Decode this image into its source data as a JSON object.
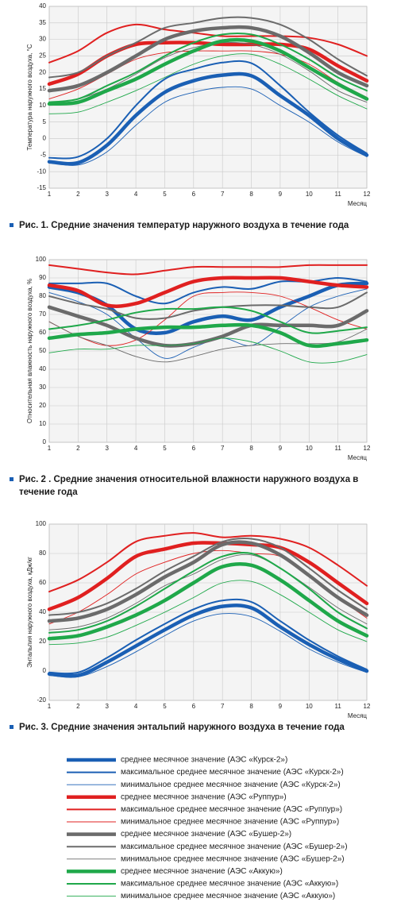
{
  "chart_data": [
    {
      "type": "line",
      "caption": "Рис. 1. Средние значения температур наружного воздуха в течение года",
      "ylabel": "Температура наружного воздуха, °С",
      "xlabel": "Месяц",
      "x": [
        1,
        2,
        3,
        4,
        5,
        6,
        7,
        8,
        9,
        10,
        11,
        12
      ],
      "xlim": [
        1,
        12
      ],
      "ylim": [
        -15,
        40
      ],
      "yticks": [
        -15,
        -10,
        -5,
        0,
        5,
        10,
        15,
        20,
        25,
        30,
        35,
        40
      ],
      "grid": true,
      "series": [
        {
          "name": "среднее месячное значение (АЭС «Курск-2»)",
          "color": "#1a5fb4",
          "values": [
            -7,
            -7.3,
            -2,
            7,
            14,
            17.5,
            19.2,
            19,
            13,
            7,
            0,
            -5
          ]
        },
        {
          "name": "максимальное среднее месячное значение (АЭС «Курск-2»)",
          "color": "#1a5fb4",
          "values": [
            -5.8,
            -5.5,
            0,
            10,
            18,
            21,
            23,
            22.8,
            16,
            8,
            1,
            -4.5
          ]
        },
        {
          "name": "минимальное среднее месячное значение (АЭС «Курск-2»)",
          "color": "#1a5fb4",
          "values": [
            -7.2,
            -8,
            -4,
            4,
            11,
            14,
            15.5,
            15,
            10,
            5,
            -1,
            -5.5
          ]
        },
        {
          "name": "среднее месячное значение (АЭС «Руппур»)",
          "color": "#e02020",
          "values": [
            16.5,
            19.5,
            25,
            28.5,
            29,
            29,
            28.5,
            28.5,
            28.5,
            27,
            22,
            17.5
          ]
        },
        {
          "name": "максимальное среднее месячное значение (АЭС «Руппур»)",
          "color": "#e02020",
          "values": [
            23,
            26.5,
            32,
            34.5,
            33,
            32,
            31,
            31,
            31,
            30.5,
            28.5,
            25
          ]
        },
        {
          "name": "минимальное среднее месячное значение (АЭС «Руппур»)",
          "color": "#e02020",
          "values": [
            12,
            15,
            19.5,
            24,
            26,
            26.5,
            26.5,
            26.5,
            25.5,
            22.5,
            17,
            12.5
          ]
        },
        {
          "name": "среднее месячное значение (АЭС «Бушер-2»)",
          "color": "#6b6b6b",
          "values": [
            14.5,
            16,
            20,
            25,
            30,
            32.5,
            33.5,
            33.5,
            31,
            26,
            20,
            16
          ]
        },
        {
          "name": "максимальное среднее месячное значение (АЭС «Бушер-2»)",
          "color": "#6b6b6b",
          "values": [
            18.5,
            20,
            25,
            29,
            33.5,
            35,
            36.5,
            36.5,
            34.5,
            30,
            24,
            19
          ]
        },
        {
          "name": "минимальное среднее месячное значение (АЭС «Бушер-2»)",
          "color": "#6b6b6b",
          "values": [
            10.5,
            12,
            15,
            19.5,
            24.5,
            27.5,
            29,
            28.5,
            25.5,
            20.5,
            14.5,
            11
          ]
        },
        {
          "name": "среднее месячное значение (АЭС «Аккую»)",
          "color": "#1fa84a",
          "values": [
            10.5,
            11,
            14.5,
            18,
            22.5,
            26.5,
            29.5,
            29.5,
            26.5,
            21.5,
            16.5,
            12
          ]
        },
        {
          "name": "максимальное среднее месячное значение (АЭС «Аккую»)",
          "color": "#1fa84a",
          "values": [
            11,
            12,
            16,
            20,
            25,
            29,
            31.5,
            31.5,
            28.5,
            24,
            18.5,
            14.5
          ]
        },
        {
          "name": "минимальное среднее месячное значение (АЭС «Аккую»)",
          "color": "#1fa84a",
          "values": [
            7.5,
            8,
            11,
            14.5,
            18.5,
            22.5,
            25,
            25.5,
            22.5,
            18,
            13,
            9
          ]
        }
      ]
    },
    {
      "type": "line",
      "caption": "Рис. 2 . Средние значения относительной влажности наружного воздуха в течение года",
      "ylabel": "Относительная влажность наружного воздуха, %",
      "xlabel": "Месяц",
      "x": [
        1,
        2,
        3,
        4,
        5,
        6,
        7,
        8,
        9,
        10,
        11,
        12
      ],
      "xlim": [
        1,
        12
      ],
      "ylim": [
        0,
        100
      ],
      "yticks": [
        0,
        10,
        20,
        30,
        40,
        50,
        60,
        70,
        80,
        90,
        100
      ],
      "grid": true,
      "series": [
        {
          "color": "#1a5fb4",
          "values": [
            85,
            82,
            75,
            62,
            60,
            66,
            69,
            67,
            74,
            80,
            86,
            87
          ]
        },
        {
          "color": "#1a5fb4",
          "values": [
            87,
            87,
            87,
            80,
            76,
            82,
            85,
            84,
            88,
            88,
            90,
            88
          ]
        },
        {
          "color": "#1a5fb4",
          "values": [
            82,
            77,
            70,
            57,
            46,
            52,
            57,
            53,
            63,
            74,
            80,
            84
          ]
        },
        {
          "color": "#e02020",
          "values": [
            86,
            83,
            75,
            76,
            82,
            88,
            90,
            90,
            90,
            88,
            86,
            85
          ]
        },
        {
          "color": "#e02020",
          "values": [
            97,
            95,
            93,
            92,
            94,
            96,
            96,
            96,
            96,
            97,
            97,
            97
          ]
        },
        {
          "color": "#e02020",
          "values": [
            66,
            58,
            53,
            56,
            67,
            80,
            82,
            82,
            80,
            74,
            67,
            62
          ]
        },
        {
          "color": "#6b6b6b",
          "values": [
            74,
            69,
            64,
            57,
            53,
            54,
            58,
            64,
            64,
            64,
            64,
            72
          ]
        },
        {
          "color": "#6b6b6b",
          "values": [
            80,
            76,
            73,
            68,
            68,
            72,
            74,
            75,
            75,
            74,
            74,
            82
          ]
        },
        {
          "color": "#6b6b6b",
          "values": [
            66,
            58,
            53,
            47,
            44,
            47,
            51,
            53,
            54,
            54,
            55,
            62
          ]
        },
        {
          "color": "#1fa84a",
          "values": [
            57,
            59,
            60,
            62,
            63,
            63,
            64,
            64,
            60,
            53,
            54,
            56
          ]
        },
        {
          "color": "#1fa84a",
          "values": [
            62,
            64,
            67,
            71,
            73,
            73,
            74,
            72,
            66,
            60,
            61,
            63
          ]
        },
        {
          "color": "#1fa84a",
          "values": [
            49,
            51,
            51,
            53,
            53,
            54,
            57,
            55,
            50,
            44,
            44,
            48
          ]
        }
      ]
    },
    {
      "type": "line",
      "caption": "Рис. 3. Средние значения энтальпий наружного воздуха в течение года",
      "ylabel": "Энтальпия наружного воздуха, кДж/кг",
      "xlabel": "Месяц",
      "x": [
        1,
        2,
        3,
        4,
        5,
        6,
        7,
        8,
        9,
        10,
        11,
        12
      ],
      "xlim": [
        1,
        12
      ],
      "ylim": [
        -20,
        100
      ],
      "yticks": [
        -20,
        0,
        20,
        40,
        60,
        80,
        100
      ],
      "grid": true,
      "series": [
        {
          "color": "#1a5fb4",
          "values": [
            -2,
            -3,
            6,
            17,
            28,
            38,
            44,
            43,
            30,
            18,
            8,
            0
          ]
        },
        {
          "color": "#1a5fb4",
          "values": [
            -1,
            -1,
            9,
            21,
            32,
            42,
            48,
            47,
            34,
            21,
            10,
            1
          ]
        },
        {
          "color": "#1a5fb4",
          "values": [
            -3,
            -4,
            3,
            13,
            24,
            34,
            39,
            37,
            27,
            15,
            6,
            -1
          ]
        },
        {
          "color": "#e02020",
          "values": [
            42,
            50,
            63,
            78,
            83,
            87,
            87,
            86,
            84,
            74,
            60,
            46
          ]
        },
        {
          "color": "#e02020",
          "values": [
            54,
            62,
            74,
            88,
            92,
            94,
            91,
            92,
            90,
            84,
            72,
            58
          ]
        },
        {
          "color": "#e02020",
          "values": [
            32,
            40,
            52,
            66,
            74,
            80,
            82,
            80,
            78,
            66,
            50,
            36
          ]
        },
        {
          "color": "#6b6b6b",
          "values": [
            34,
            36,
            42,
            52,
            64,
            74,
            86,
            87,
            79,
            65,
            50,
            38
          ]
        },
        {
          "color": "#6b6b6b",
          "values": [
            38,
            40,
            46,
            56,
            68,
            78,
            88,
            90,
            84,
            70,
            55,
            42
          ]
        },
        {
          "color": "#6b6b6b",
          "values": [
            28,
            30,
            36,
            46,
            58,
            66,
            76,
            79,
            70,
            57,
            43,
            32
          ]
        },
        {
          "color": "#1fa84a",
          "values": [
            22,
            24,
            30,
            38,
            48,
            60,
            71,
            72,
            62,
            48,
            34,
            24
          ]
        },
        {
          "color": "#1fa84a",
          "values": [
            26,
            28,
            34,
            44,
            56,
            68,
            78,
            80,
            70,
            56,
            40,
            29
          ]
        },
        {
          "color": "#1fa84a",
          "values": [
            18,
            19,
            23,
            31,
            40,
            50,
            60,
            61,
            52,
            40,
            28,
            20
          ]
        }
      ]
    }
  ]
}
